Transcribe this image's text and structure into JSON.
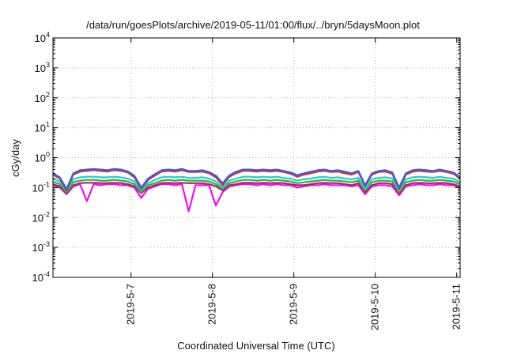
{
  "chart_data": {
    "type": "line",
    "title": "/data/run/goesPlots/archive/2019-05-11/01:00/flux/../bryn/5daysMoon.plot",
    "xlabel": "Coordinated Universal Time (UTC)",
    "ylabel": "cGy/day",
    "yscale": "log",
    "ylim": [
      0.0001,
      10000
    ],
    "xlim": [
      "2019-05-06T01:00",
      "2019-05-11T01:00"
    ],
    "grid": true,
    "x_ticks": [
      "2019-5-7",
      "2019-5-8",
      "2019-5-9",
      "2019-5-10",
      "2019-5-11"
    ],
    "y_ticks": [
      {
        "base": "10",
        "exp": "-4"
      },
      {
        "base": "10",
        "exp": "-3"
      },
      {
        "base": "10",
        "exp": "-2"
      },
      {
        "base": "10",
        "exp": "-1"
      },
      {
        "base": "10",
        "exp": "0"
      },
      {
        "base": "10",
        "exp": "1"
      },
      {
        "base": "10",
        "exp": "2"
      },
      {
        "base": "10",
        "exp": "3"
      },
      {
        "base": "10",
        "exp": "4"
      }
    ],
    "x": [
      "2019-05-06T01:00",
      "2019-05-06T03:00",
      "2019-05-06T05:00",
      "2019-05-06T07:00",
      "2019-05-06T09:00",
      "2019-05-06T11:00",
      "2019-05-06T13:00",
      "2019-05-06T15:00",
      "2019-05-06T17:00",
      "2019-05-06T19:00",
      "2019-05-06T21:00",
      "2019-05-06T23:00",
      "2019-05-07T01:00",
      "2019-05-07T03:00",
      "2019-05-07T05:00",
      "2019-05-07T07:00",
      "2019-05-07T09:00",
      "2019-05-07T11:00",
      "2019-05-07T13:00",
      "2019-05-07T15:00",
      "2019-05-07T17:00",
      "2019-05-07T19:00",
      "2019-05-07T21:00",
      "2019-05-07T23:00",
      "2019-05-08T01:00",
      "2019-05-08T03:00",
      "2019-05-08T05:00",
      "2019-05-08T07:00",
      "2019-05-08T09:00",
      "2019-05-08T11:00",
      "2019-05-08T13:00",
      "2019-05-08T15:00",
      "2019-05-08T17:00",
      "2019-05-08T19:00",
      "2019-05-08T21:00",
      "2019-05-08T23:00",
      "2019-05-09T01:00",
      "2019-05-09T03:00",
      "2019-05-09T05:00",
      "2019-05-09T07:00",
      "2019-05-09T09:00",
      "2019-05-09T11:00",
      "2019-05-09T13:00",
      "2019-05-09T15:00",
      "2019-05-09T17:00",
      "2019-05-09T19:00",
      "2019-05-09T21:00",
      "2019-05-09T23:00",
      "2019-05-10T01:00",
      "2019-05-10T03:00",
      "2019-05-10T05:00",
      "2019-05-10T07:00",
      "2019-05-10T09:00",
      "2019-05-10T11:00",
      "2019-05-10T13:00",
      "2019-05-10T15:00",
      "2019-05-10T17:00",
      "2019-05-10T19:00",
      "2019-05-10T21:00",
      "2019-05-10T23:00",
      "2019-05-11T01:00"
    ],
    "series": [
      {
        "color": "#3a5fd8",
        "values": [
          0.3,
          0.22,
          0.09,
          0.3,
          0.38,
          0.4,
          0.42,
          0.4,
          0.38,
          0.42,
          0.4,
          0.35,
          0.25,
          0.1,
          0.2,
          0.28,
          0.38,
          0.4,
          0.38,
          0.42,
          0.36,
          0.36,
          0.38,
          0.33,
          0.25,
          0.14,
          0.26,
          0.34,
          0.4,
          0.4,
          0.38,
          0.4,
          0.38,
          0.4,
          0.36,
          0.32,
          0.26,
          0.3,
          0.34,
          0.38,
          0.4,
          0.36,
          0.38,
          0.34,
          0.3,
          0.36,
          0.12,
          0.3,
          0.36,
          0.38,
          0.32,
          0.1,
          0.3,
          0.38,
          0.4,
          0.38,
          0.36,
          0.4,
          0.36,
          0.32,
          0.22
        ]
      },
      {
        "color": "#d8323a",
        "values": [
          0.27,
          0.2,
          0.08,
          0.27,
          0.34,
          0.36,
          0.38,
          0.36,
          0.34,
          0.38,
          0.36,
          0.32,
          0.22,
          0.09,
          0.18,
          0.25,
          0.34,
          0.36,
          0.34,
          0.38,
          0.33,
          0.33,
          0.34,
          0.3,
          0.22,
          0.12,
          0.23,
          0.3,
          0.36,
          0.36,
          0.34,
          0.36,
          0.34,
          0.36,
          0.33,
          0.29,
          0.23,
          0.27,
          0.3,
          0.34,
          0.36,
          0.33,
          0.34,
          0.3,
          0.27,
          0.33,
          0.11,
          0.27,
          0.33,
          0.34,
          0.29,
          0.09,
          0.27,
          0.34,
          0.36,
          0.34,
          0.33,
          0.36,
          0.33,
          0.29,
          0.2
        ]
      },
      {
        "color": "#30c8c8",
        "values": [
          0.2,
          0.16,
          0.08,
          0.19,
          0.22,
          0.23,
          0.23,
          0.22,
          0.22,
          0.23,
          0.22,
          0.2,
          0.16,
          0.08,
          0.14,
          0.18,
          0.22,
          0.23,
          0.22,
          0.23,
          0.21,
          0.21,
          0.22,
          0.2,
          0.16,
          0.1,
          0.17,
          0.2,
          0.23,
          0.23,
          0.22,
          0.23,
          0.22,
          0.23,
          0.21,
          0.2,
          0.17,
          0.19,
          0.2,
          0.22,
          0.23,
          0.21,
          0.22,
          0.2,
          0.19,
          0.21,
          0.09,
          0.19,
          0.21,
          0.22,
          0.2,
          0.08,
          0.19,
          0.22,
          0.23,
          0.22,
          0.21,
          0.23,
          0.21,
          0.2,
          0.15
        ]
      },
      {
        "color": "#30b04a",
        "values": [
          0.16,
          0.13,
          0.07,
          0.15,
          0.17,
          0.18,
          0.18,
          0.17,
          0.17,
          0.18,
          0.17,
          0.16,
          0.13,
          0.07,
          0.12,
          0.14,
          0.17,
          0.18,
          0.17,
          0.18,
          0.17,
          0.17,
          0.17,
          0.16,
          0.13,
          0.09,
          0.14,
          0.16,
          0.18,
          0.18,
          0.17,
          0.18,
          0.17,
          0.18,
          0.17,
          0.16,
          0.14,
          0.15,
          0.16,
          0.17,
          0.18,
          0.17,
          0.17,
          0.16,
          0.15,
          0.17,
          0.08,
          0.15,
          0.17,
          0.17,
          0.16,
          0.07,
          0.15,
          0.17,
          0.18,
          0.17,
          0.17,
          0.18,
          0.17,
          0.16,
          0.13
        ]
      },
      {
        "color": "#9a3060",
        "values": [
          0.13,
          0.11,
          0.065,
          0.12,
          0.14,
          0.145,
          0.145,
          0.14,
          0.14,
          0.145,
          0.14,
          0.13,
          0.11,
          0.065,
          0.1,
          0.12,
          0.14,
          0.145,
          0.14,
          0.145,
          0.14,
          0.14,
          0.14,
          0.13,
          0.11,
          0.08,
          0.12,
          0.13,
          0.145,
          0.145,
          0.14,
          0.145,
          0.14,
          0.145,
          0.14,
          0.13,
          0.12,
          0.12,
          0.13,
          0.14,
          0.145,
          0.14,
          0.14,
          0.13,
          0.12,
          0.14,
          0.07,
          0.12,
          0.14,
          0.14,
          0.13,
          0.065,
          0.12,
          0.14,
          0.145,
          0.14,
          0.14,
          0.145,
          0.14,
          0.13,
          0.11
        ]
      },
      {
        "color": "#ee10ee",
        "values": [
          0.12,
          0.1,
          0.06,
          0.11,
          0.13,
          0.035,
          0.13,
          0.12,
          0.13,
          0.13,
          0.12,
          0.12,
          0.1,
          0.045,
          0.09,
          0.11,
          0.13,
          0.13,
          0.12,
          0.13,
          0.016,
          0.12,
          0.12,
          0.12,
          0.025,
          0.07,
          0.11,
          0.12,
          0.13,
          0.13,
          0.12,
          0.13,
          0.12,
          0.13,
          0.12,
          0.12,
          0.1,
          0.11,
          0.12,
          0.12,
          0.13,
          0.12,
          0.12,
          0.12,
          0.11,
          0.12,
          0.06,
          0.11,
          0.12,
          0.12,
          0.11,
          0.055,
          0.11,
          0.12,
          0.13,
          0.12,
          0.12,
          0.13,
          0.12,
          0.12,
          0.1
        ]
      }
    ]
  }
}
